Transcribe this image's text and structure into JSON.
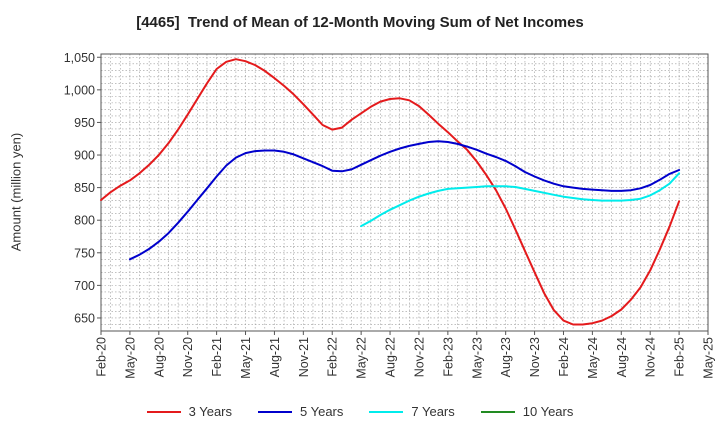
{
  "chart_data": {
    "type": "line",
    "title": "[4465]  Trend of Mean of 12-Month Moving Sum of Net Incomes",
    "xlabel": "",
    "ylabel": "Amount (million yen)",
    "ylim": [
      630,
      1055
    ],
    "y_ticks": [
      650,
      700,
      750,
      800,
      850,
      900,
      950,
      1000,
      1050
    ],
    "y_tick_labels": [
      "650",
      "700",
      "750",
      "800",
      "850",
      "900",
      "950",
      "1,000",
      "1,050"
    ],
    "x_ticks": [
      "Feb-20",
      "May-20",
      "Aug-20",
      "Nov-20",
      "Feb-21",
      "May-21",
      "Aug-21",
      "Nov-21",
      "Feb-22",
      "May-22",
      "Aug-22",
      "Nov-22",
      "Feb-23",
      "May-23",
      "Aug-23",
      "Nov-23",
      "Feb-24",
      "May-24",
      "Aug-24",
      "Nov-24",
      "Feb-25",
      "May-25"
    ],
    "grid": true,
    "legend_position": "bottom",
    "series": [
      {
        "name": "3 Years",
        "color": "#e41a1c",
        "x": [
          "Feb-20",
          "Mar-20",
          "Apr-20",
          "May-20",
          "Jun-20",
          "Jul-20",
          "Aug-20",
          "Sep-20",
          "Oct-20",
          "Nov-20",
          "Dec-20",
          "Jan-21",
          "Feb-21",
          "Mar-21",
          "Apr-21",
          "May-21",
          "Jun-21",
          "Jul-21",
          "Aug-21",
          "Sep-21",
          "Oct-21",
          "Nov-21",
          "Dec-21",
          "Jan-22",
          "Feb-22",
          "Mar-22",
          "Apr-22",
          "May-22",
          "Jun-22",
          "Jul-22",
          "Aug-22",
          "Sep-22",
          "Oct-22",
          "Nov-22",
          "Dec-22",
          "Jan-23",
          "Feb-23",
          "Mar-23",
          "Apr-23",
          "May-23",
          "Jun-23",
          "Jul-23",
          "Aug-23",
          "Sep-23",
          "Oct-23",
          "Nov-23",
          "Dec-23",
          "Jan-24",
          "Feb-24",
          "Mar-24",
          "Apr-24",
          "May-24",
          "Jun-24",
          "Jul-24",
          "Aug-24",
          "Sep-24",
          "Oct-24",
          "Nov-24",
          "Dec-24",
          "Jan-25",
          "Feb-25"
        ],
        "values": [
          831,
          843,
          853,
          861,
          872,
          885,
          900,
          918,
          939,
          962,
          986,
          1010,
          1032,
          1043,
          1047,
          1044,
          1038,
          1029,
          1018,
          1006,
          993,
          978,
          962,
          946,
          939,
          942,
          954,
          964,
          974,
          982,
          986,
          987,
          984,
          975,
          962,
          948,
          935,
          921,
          908,
          890,
          869,
          846,
          818,
          786,
          753,
          720,
          688,
          662,
          646,
          640,
          640,
          642,
          646,
          653,
          663,
          678,
          697,
          723,
          755,
          790,
          829
        ]
      },
      {
        "name": "5 Years",
        "color": "#0000cc",
        "x": [
          "May-20",
          "Jun-20",
          "Jul-20",
          "Aug-20",
          "Sep-20",
          "Oct-20",
          "Nov-20",
          "Dec-20",
          "Jan-21",
          "Feb-21",
          "Mar-21",
          "Apr-21",
          "May-21",
          "Jun-21",
          "Jul-21",
          "Aug-21",
          "Sep-21",
          "Oct-21",
          "Nov-21",
          "Dec-21",
          "Jan-22",
          "Feb-22",
          "Mar-22",
          "Apr-22",
          "May-22",
          "Jun-22",
          "Jul-22",
          "Aug-22",
          "Sep-22",
          "Oct-22",
          "Nov-22",
          "Dec-22",
          "Jan-23",
          "Feb-23",
          "Mar-23",
          "Apr-23",
          "May-23",
          "Jun-23",
          "Jul-23",
          "Aug-23",
          "Sep-23",
          "Oct-23",
          "Nov-23",
          "Dec-23",
          "Jan-24",
          "Feb-24",
          "Mar-24",
          "Apr-24",
          "May-24",
          "Jun-24",
          "Jul-24",
          "Aug-24",
          "Sep-24",
          "Oct-24",
          "Nov-24",
          "Dec-24",
          "Jan-25",
          "Feb-25"
        ],
        "values": [
          740,
          747,
          756,
          767,
          780,
          796,
          813,
          831,
          849,
          867,
          884,
          896,
          903,
          906,
          907,
          907,
          905,
          901,
          895,
          889,
          883,
          876,
          875,
          878,
          885,
          892,
          899,
          905,
          910,
          914,
          917,
          920,
          921,
          920,
          917,
          913,
          908,
          902,
          897,
          891,
          883,
          874,
          867,
          861,
          856,
          852,
          850,
          848,
          847,
          846,
          845,
          845,
          846,
          849,
          854,
          862,
          871,
          877
        ]
      },
      {
        "name": "7 Years",
        "color": "#00ecec",
        "x": [
          "May-22",
          "Jun-22",
          "Jul-22",
          "Aug-22",
          "Sep-22",
          "Oct-22",
          "Nov-22",
          "Dec-22",
          "Jan-23",
          "Feb-23",
          "Mar-23",
          "Apr-23",
          "May-23",
          "Jun-23",
          "Jul-23",
          "Aug-23",
          "Sep-23",
          "Oct-23",
          "Nov-23",
          "Dec-23",
          "Jan-24",
          "Feb-24",
          "Mar-24",
          "Apr-24",
          "May-24",
          "Jun-24",
          "Jul-24",
          "Aug-24",
          "Sep-24",
          "Oct-24",
          "Nov-24",
          "Dec-24",
          "Jan-25",
          "Feb-25"
        ],
        "values": [
          791,
          799,
          808,
          816,
          823,
          830,
          836,
          841,
          845,
          848,
          849,
          850,
          851,
          852,
          852,
          852,
          851,
          848,
          845,
          842,
          839,
          836,
          834,
          832,
          831,
          830,
          830,
          830,
          831,
          833,
          838,
          846,
          856,
          872
        ]
      },
      {
        "name": "10 Years",
        "color": "#228b22",
        "x": [],
        "values": []
      }
    ]
  }
}
